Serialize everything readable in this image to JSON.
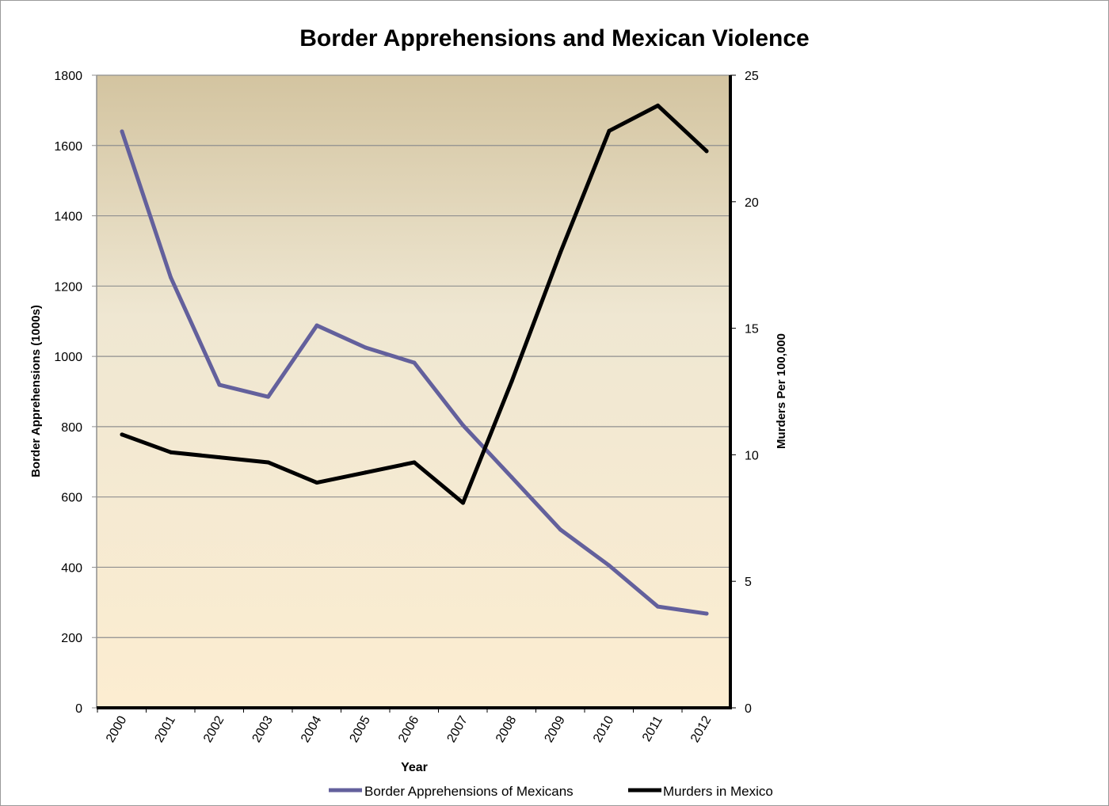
{
  "chart_data": {
    "type": "line",
    "title": "Border Apprehensions and Mexican Violence",
    "xlabel": "Year",
    "ylabel": "Border Apprehensions (1000s)",
    "y2label": "Murders Per 100,000",
    "categories": [
      "2000",
      "2001",
      "2002",
      "2003",
      "2004",
      "2005",
      "2006",
      "2007",
      "2008",
      "2009",
      "2010",
      "2011",
      "2012"
    ],
    "ylim": [
      0,
      1800
    ],
    "y2lim": [
      0,
      25
    ],
    "yticks": [
      "0",
      "200",
      "400",
      "600",
      "800",
      "1000",
      "1200",
      "1400",
      "1600",
      "1800"
    ],
    "y2ticks": [
      "0",
      "5",
      "10",
      "15",
      "20",
      "25"
    ],
    "grid": true,
    "legend_position": "bottom",
    "background": "gradient tan-to-cream",
    "series": [
      {
        "name": "Border Apprehensions of Mexicans",
        "axis": "left",
        "color": "#63609c",
        "values": [
          1640,
          1225,
          919,
          885,
          1088,
          1025,
          982,
          804,
          656,
          507,
          405,
          288,
          268
        ]
      },
      {
        "name": "Murders in Mexico",
        "axis": "right",
        "color": "#000000",
        "values": [
          10.8,
          10.1,
          9.9,
          9.7,
          8.9,
          9.3,
          9.7,
          8.1,
          12.9,
          18.0,
          22.8,
          23.8,
          22.0
        ]
      }
    ]
  }
}
